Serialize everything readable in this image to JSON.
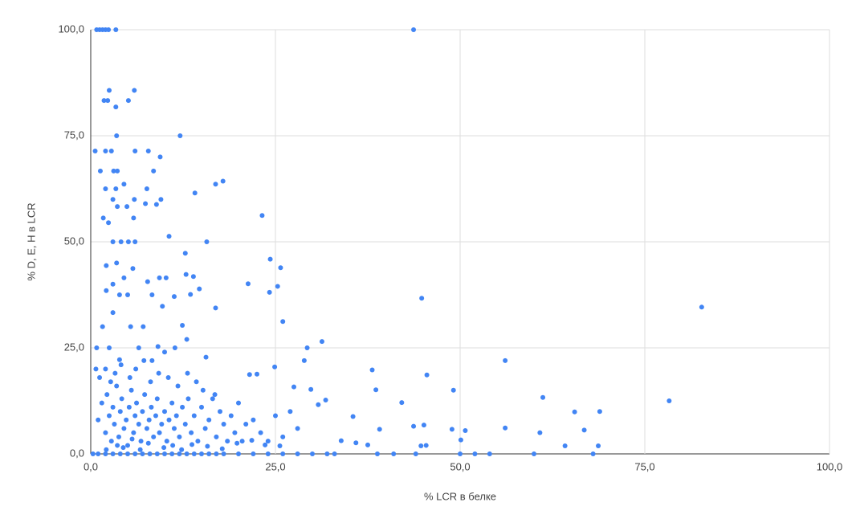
{
  "chart_data": {
    "type": "scatter",
    "x_label": "% LCR в белке",
    "y_label": "% D, E, H в LCR",
    "color": "#4285f4",
    "grid": true,
    "xlim": [
      0,
      100
    ],
    "ylim": [
      0,
      100
    ],
    "xticks": [
      {
        "value": 0,
        "label": "0,0"
      },
      {
        "value": 25,
        "label": "25,0"
      },
      {
        "value": 50,
        "label": "50,0"
      },
      {
        "value": 75,
        "label": "75,0"
      },
      {
        "value": 100,
        "label": "100,0"
      }
    ],
    "yticks": [
      {
        "value": 0,
        "label": "0,0"
      },
      {
        "value": 25,
        "label": "25,0"
      },
      {
        "value": 50,
        "label": "50,0"
      },
      {
        "value": 75,
        "label": "75,0"
      },
      {
        "value": 100,
        "label": "100,0"
      }
    ],
    "x": [
      43.7,
      82.7,
      78.3,
      44.8,
      23.2,
      17.9,
      16.9,
      14.1,
      12.1,
      10.6,
      15.7,
      12.8,
      24.3,
      25.7,
      21.3,
      25.3,
      24.2,
      26,
      31.3,
      29.3,
      38.1,
      45.5,
      56.1,
      49.1,
      38.6,
      42.1,
      61.2,
      65.5,
      68.9,
      66.8,
      56.1,
      60.8,
      50.7,
      48.9,
      50.1,
      64.2,
      68.7,
      45.1,
      43.7,
      45.4,
      44.7,
      39.1,
      37.5,
      35.9,
      35.5,
      33.9,
      31.8,
      29.8,
      28.9,
      27.5,
      24.9,
      22.5,
      21.5,
      30.8,
      0.8,
      1.2,
      1.6,
      2,
      2.4,
      3.4,
      2.5,
      1.8,
      2.3,
      3.4,
      5.9,
      5.1,
      0.6,
      2,
      2.8,
      3.5,
      6,
      7.8,
      9.4,
      1.3,
      3.1,
      3.6,
      8.5,
      7.6,
      2,
      3.4,
      4.5,
      3,
      5.9,
      9.5,
      3.6,
      4.9,
      1.7,
      5.8,
      2.4,
      7.4,
      8.9,
      3,
      4.1,
      5.1,
      6,
      2.1,
      3.5,
      5.7,
      3,
      4.5,
      2.1,
      3.9,
      5,
      7.7,
      9.3,
      10.2,
      8.3,
      9.7,
      11.3,
      12.9,
      13.9,
      13.5,
      14.7,
      16.9,
      12.4,
      13,
      11.4,
      9.1,
      7.1,
      5.4,
      3,
      1.6,
      0.8,
      2.5,
      0.7,
      2,
      3.9,
      6.5,
      8.3,
      10,
      15.6,
      1,
      1.5,
      2,
      2.2,
      2.5,
      2.8,
      3,
      3.2,
      3.5,
      3.8,
      4,
      4.2,
      4.5,
      4.8,
      5,
      5.2,
      5.5,
      5.8,
      6,
      6.2,
      6.5,
      6.8,
      7,
      7.3,
      7.6,
      7.9,
      8.2,
      8.5,
      8.8,
      9,
      9.3,
      9.6,
      10,
      10.3,
      10.6,
      11,
      11.3,
      11.6,
      12,
      12.4,
      12.8,
      13.2,
      13.6,
      14,
      14.5,
      15,
      15.5,
      16,
      16.5,
      17,
      17.5,
      18,
      18.5,
      19,
      19.5,
      20,
      20.5,
      21,
      22,
      23,
      24,
      25,
      26,
      27,
      28,
      1.2,
      2.7,
      3.3,
      4.1,
      5.3,
      6.1,
      7.2,
      8.1,
      9.2,
      10.5,
      11.8,
      13.1,
      14.3,
      15.2,
      16.8,
      2.1,
      3.6,
      4.4,
      5.6,
      6.7,
      7.8,
      9.9,
      11.1,
      12.3,
      13.7,
      15.8,
      17.8,
      19.8,
      21.8,
      23.6,
      25.6,
      0.3,
      1,
      2,
      3,
      4,
      5,
      6,
      7,
      8,
      9,
      10,
      11,
      12,
      13,
      14,
      15,
      16,
      17,
      18,
      20,
      22,
      24,
      26,
      28,
      30,
      32,
      33,
      38.8,
      41,
      44,
      50,
      52,
      54,
      60,
      68
    ],
    "values": [
      100,
      34.6,
      12.5,
      36.7,
      56.2,
      64.3,
      63.6,
      61.5,
      75,
      51.3,
      50,
      47.3,
      45.9,
      43.9,
      40.1,
      39.5,
      38.1,
      31.2,
      26.5,
      25,
      19.8,
      18.6,
      22,
      15,
      15.1,
      12.1,
      13.3,
      9.9,
      10,
      5.6,
      6.1,
      5,
      5.5,
      5.8,
      3.3,
      1.9,
      1.9,
      6.8,
      6.5,
      2,
      1.9,
      5.8,
      2.1,
      2.6,
      8.8,
      3.1,
      12.7,
      15.2,
      22,
      15.8,
      20.5,
      18.8,
      18.7,
      11.6,
      100,
      100,
      100,
      100,
      100,
      100,
      85.7,
      83.3,
      83.3,
      81.8,
      85.7,
      83.3,
      71.4,
      71.4,
      71.4,
      75,
      71.4,
      71.4,
      70,
      66.7,
      66.7,
      66.7,
      66.7,
      62.5,
      62.5,
      62.5,
      63.6,
      60,
      60,
      60,
      58.3,
      58.3,
      55.6,
      55.6,
      54.5,
      59,
      58.8,
      50,
      50,
      50,
      50,
      44.4,
      45,
      43.7,
      40,
      41.5,
      38.5,
      37.5,
      37.5,
      40.6,
      41.5,
      41.5,
      37.5,
      34.8,
      37.1,
      42.3,
      41.8,
      37.6,
      38.9,
      34.4,
      30.3,
      27,
      25,
      25.3,
      30,
      30,
      33.3,
      30,
      25,
      25,
      20,
      20,
      22.2,
      25,
      22,
      24,
      22.8,
      8,
      12,
      5,
      14,
      9,
      3,
      11,
      7,
      16,
      4,
      10,
      13,
      6,
      8,
      2,
      11,
      15,
      5,
      9,
      12,
      7,
      3,
      10,
      14,
      6,
      8,
      11,
      4,
      9,
      13,
      5,
      7,
      10,
      3,
      8,
      12,
      6,
      9,
      4,
      11,
      7,
      13,
      5,
      9,
      3,
      11,
      6,
      8,
      13,
      4,
      10,
      7,
      3,
      9,
      5,
      12,
      3,
      7,
      8,
      5,
      3,
      9,
      4,
      10,
      6,
      18,
      17,
      19,
      21,
      18,
      20,
      22,
      17,
      19,
      18,
      16,
      19,
      17,
      15,
      14,
      1,
      2,
      1.5,
      3.5,
      1,
      2.5,
      1.5,
      2,
      1,
      2.2,
      1.8,
      1.2,
      2.5,
      3.2,
      2.1,
      1.9,
      0,
      0,
      0,
      0,
      0,
      0,
      0,
      0,
      0,
      0,
      0,
      0,
      0,
      0,
      0,
      0,
      0,
      0,
      0,
      0,
      0,
      0,
      0,
      0,
      0,
      0,
      0,
      0,
      0,
      0,
      0,
      0,
      0,
      0,
      0
    ]
  }
}
